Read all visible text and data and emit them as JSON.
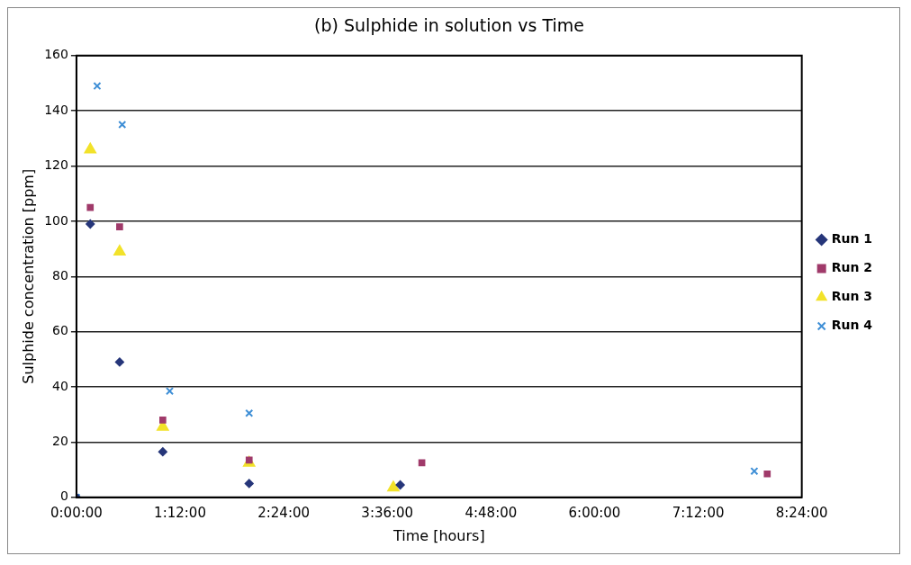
{
  "chart_data": {
    "type": "scatter",
    "title": "(b) Sulphide in solution vs Time",
    "xlabel": "Time [hours]",
    "ylabel": "Sulphide concentration [ppm]",
    "xlim": [
      0,
      8.4
    ],
    "xticks": [
      {
        "value": 0,
        "label": "0:00:00"
      },
      {
        "value": 1.2,
        "label": "1:12:00"
      },
      {
        "value": 2.4,
        "label": "2:24:00"
      },
      {
        "value": 3.6,
        "label": "3:36:00"
      },
      {
        "value": 4.8,
        "label": "4:48:00"
      },
      {
        "value": 6,
        "label": "6:00:00"
      },
      {
        "value": 7.2,
        "label": "7:12:00"
      },
      {
        "value": 8.4,
        "label": "8:24:00"
      }
    ],
    "ylim": [
      0,
      160
    ],
    "yticks": [
      0,
      20,
      40,
      60,
      80,
      100,
      120,
      140,
      160
    ],
    "grid": "y",
    "legend": "right",
    "series": [
      {
        "name": "Run 1",
        "color": "#26367a",
        "marker": "diamond",
        "x": [
          0,
          0.16,
          0.5,
          1.0,
          2.0,
          3.75
        ],
        "values": [
          0,
          99,
          49,
          16.5,
          5,
          4.5
        ]
      },
      {
        "name": "Run 2",
        "color": "#a03a6a",
        "marker": "square",
        "x": [
          0.16,
          0.5,
          1.0,
          2.0,
          4.0,
          8.0
        ],
        "values": [
          105,
          98,
          28,
          13.5,
          12.5,
          8.5
        ]
      },
      {
        "name": "Run 3",
        "color": "#f2e22a",
        "marker": "triangle",
        "x": [
          0.16,
          0.5,
          1.0,
          2.0,
          3.67
        ],
        "values": [
          126,
          89,
          25.5,
          12.5,
          3.5
        ]
      },
      {
        "name": "Run 4",
        "color": "#3f8fd6",
        "marker": "cross",
        "x": [
          0,
          0.24,
          0.53,
          1.08,
          2.0,
          7.85
        ],
        "values": [
          0,
          149,
          135,
          38.5,
          30.5,
          9.5
        ]
      }
    ]
  }
}
